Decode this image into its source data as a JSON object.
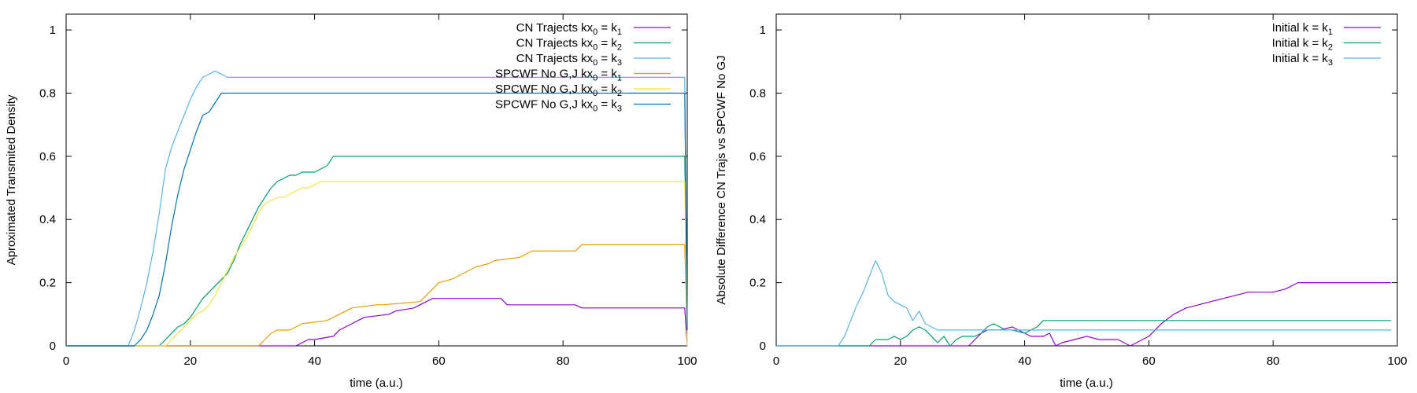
{
  "colors": {
    "purple": "#9400d3",
    "green": "#009e73",
    "cyan": "#56b4e9",
    "orange": "#e69f00",
    "yellow": "#f0e442",
    "blue": "#0072b2"
  },
  "chart_data": [
    {
      "type": "line",
      "xlabel": "time (a.u.)",
      "ylabel": "Aproximated Transmited Density",
      "xlim": [
        0,
        100
      ],
      "ylim": [
        0,
        1.05
      ],
      "xticks": [
        "0",
        "20",
        "40",
        "60",
        "80",
        "100"
      ],
      "yticks": [
        "0",
        "0.2",
        "0.4",
        "0.6",
        "0.8",
        "1"
      ],
      "grid": false,
      "legend_position": "top-right",
      "series": [
        {
          "name": "CN Trajects kx0 = k1",
          "legend": [
            "CN Trajects kx",
            "0",
            " = k",
            "1"
          ],
          "color": "#9400d3",
          "x": [
            0,
            37,
            38,
            39,
            40,
            43,
            44,
            46,
            47,
            48,
            52,
            53,
            56,
            57,
            58,
            59,
            60,
            70,
            71,
            82,
            83,
            99,
            99.6,
            100
          ],
          "y": [
            0,
            0,
            0.01,
            0.02,
            0.02,
            0.03,
            0.05,
            0.07,
            0.08,
            0.09,
            0.1,
            0.11,
            0.12,
            0.13,
            0.14,
            0.15,
            0.15,
            0.15,
            0.13,
            0.13,
            0.12,
            0.12,
            0.12,
            0.0
          ]
        },
        {
          "name": "CN Trajects kx0 = k2",
          "legend": [
            "CN Trajects kx",
            "0",
            " = k",
            "2"
          ],
          "color": "#009e73",
          "x": [
            0,
            15,
            16,
            17,
            18,
            19,
            20,
            21,
            22,
            23,
            24,
            25,
            26,
            27,
            28,
            29,
            30,
            31,
            32,
            33,
            34,
            35,
            36,
            37,
            38,
            39,
            40,
            42,
            43,
            99,
            99.6,
            100
          ],
          "y": [
            0,
            0,
            0.02,
            0.04,
            0.06,
            0.07,
            0.09,
            0.12,
            0.15,
            0.17,
            0.19,
            0.21,
            0.23,
            0.27,
            0.32,
            0.36,
            0.4,
            0.44,
            0.47,
            0.5,
            0.52,
            0.53,
            0.54,
            0.54,
            0.55,
            0.55,
            0.55,
            0.57,
            0.6,
            0.6,
            0.6,
            0.05
          ]
        },
        {
          "name": "CN Trajects kx0 = k3",
          "legend": [
            "CN Trajects kx",
            "0",
            " = k",
            "3"
          ],
          "color": "#56b4e9",
          "x": [
            0,
            10,
            11,
            12,
            13,
            14,
            15,
            16,
            17,
            18,
            19,
            20,
            21,
            22,
            23,
            24,
            25,
            26,
            27,
            99,
            99.6,
            100
          ],
          "y": [
            0,
            0,
            0.05,
            0.12,
            0.2,
            0.3,
            0.42,
            0.56,
            0.63,
            0.68,
            0.73,
            0.78,
            0.82,
            0.85,
            0.86,
            0.87,
            0.86,
            0.85,
            0.85,
            0.85,
            0.85,
            0.05
          ]
        },
        {
          "name": "SPCWF No G,J kx0 = k1",
          "legend": [
            "SPCWF No G,J kx",
            "0",
            " = k",
            "1"
          ],
          "color": "#e69f00",
          "x": [
            0,
            31,
            32,
            33,
            34,
            36,
            37,
            38,
            42,
            43,
            45,
            46,
            50,
            51,
            57,
            58,
            59,
            60,
            62,
            63,
            65,
            66,
            68,
            69,
            73,
            74,
            75,
            76,
            82,
            83,
            99,
            99.6,
            100
          ],
          "y": [
            0,
            0,
            0.02,
            0.04,
            0.05,
            0.05,
            0.06,
            0.07,
            0.08,
            0.09,
            0.11,
            0.12,
            0.13,
            0.13,
            0.14,
            0.16,
            0.18,
            0.2,
            0.21,
            0.22,
            0.24,
            0.25,
            0.26,
            0.27,
            0.28,
            0.29,
            0.3,
            0.3,
            0.3,
            0.32,
            0.32,
            0.32,
            0.02
          ]
        },
        {
          "name": "SPCWF No G,J kx0 = k2",
          "legend": [
            "SPCWF No G,J kx",
            "0",
            " = k",
            "2"
          ],
          "color": "#f0e442",
          "x": [
            0,
            16,
            17,
            18,
            19,
            20,
            21,
            22,
            23,
            24,
            25,
            26,
            27,
            28,
            29,
            30,
            31,
            32,
            33,
            34,
            35,
            36,
            37,
            38,
            39,
            40,
            41,
            42,
            99,
            99.6,
            100
          ],
          "y": [
            0,
            0,
            0.02,
            0.04,
            0.06,
            0.08,
            0.1,
            0.11,
            0.13,
            0.16,
            0.2,
            0.24,
            0.28,
            0.31,
            0.34,
            0.38,
            0.42,
            0.45,
            0.46,
            0.47,
            0.47,
            0.48,
            0.49,
            0.5,
            0.5,
            0.51,
            0.52,
            0.52,
            0.52,
            0.52,
            0.0
          ]
        },
        {
          "name": "SPCWF No G,J kx0 = k3",
          "legend": [
            "SPCWF No G,J kx",
            "0",
            " = k",
            "3"
          ],
          "color": "#0072b2",
          "x": [
            0,
            11,
            12,
            13,
            14,
            15,
            16,
            17,
            18,
            19,
            20,
            21,
            22,
            23,
            24,
            25,
            26,
            99,
            99.6,
            100
          ],
          "y": [
            0,
            0,
            0.02,
            0.05,
            0.1,
            0.16,
            0.26,
            0.38,
            0.48,
            0.56,
            0.62,
            0.68,
            0.73,
            0.74,
            0.77,
            0.8,
            0.8,
            0.8,
            0.8,
            0.05
          ]
        }
      ]
    },
    {
      "type": "line",
      "xlabel": "time (a.u.)",
      "ylabel": "Absolute Difference CN Trajs vs SPCWF No GJ",
      "xlim": [
        0,
        100
      ],
      "ylim": [
        0,
        1.05
      ],
      "xticks": [
        "0",
        "20",
        "40",
        "60",
        "80",
        "100"
      ],
      "yticks": [
        "0",
        "0.2",
        "0.4",
        "0.6",
        "0.8",
        "1"
      ],
      "grid": false,
      "legend_position": "top-right",
      "series": [
        {
          "name": "Initial k = k1",
          "legend": [
            "Initial k = k",
            "1"
          ],
          "color": "#9400d3",
          "x": [
            0,
            31,
            32,
            33,
            34,
            36,
            38,
            39,
            40,
            41,
            43,
            44,
            45,
            46,
            48,
            50,
            52,
            55,
            57,
            58,
            60,
            61,
            62,
            64,
            66,
            68,
            70,
            72,
            74,
            76,
            80,
            82,
            84,
            99
          ],
          "y": [
            0,
            0,
            0.02,
            0.04,
            0.05,
            0.05,
            0.06,
            0.05,
            0.04,
            0.03,
            0.03,
            0.04,
            0.0,
            0.01,
            0.02,
            0.03,
            0.02,
            0.02,
            0.0,
            0.01,
            0.03,
            0.05,
            0.07,
            0.1,
            0.12,
            0.13,
            0.14,
            0.15,
            0.16,
            0.17,
            0.17,
            0.18,
            0.2,
            0.2
          ]
        },
        {
          "name": "Initial k = k2",
          "legend": [
            "Initial k = k",
            "2"
          ],
          "color": "#009e73",
          "x": [
            0,
            15,
            16,
            18,
            19,
            20,
            21,
            22,
            23,
            24,
            25,
            26,
            27,
            28,
            29,
            30,
            32,
            33,
            34,
            35,
            36,
            37,
            38,
            40,
            41,
            42,
            43,
            99
          ],
          "y": [
            0,
            0,
            0.02,
            0.02,
            0.03,
            0.02,
            0.03,
            0.05,
            0.06,
            0.05,
            0.03,
            0.01,
            0.03,
            0.0,
            0.02,
            0.03,
            0.03,
            0.04,
            0.06,
            0.07,
            0.06,
            0.05,
            0.05,
            0.04,
            0.05,
            0.06,
            0.08,
            0.08
          ]
        },
        {
          "name": "Initial k = k3",
          "legend": [
            "Initial k = k",
            "3"
          ],
          "color": "#56b4e9",
          "x": [
            0,
            10,
            11,
            12,
            13,
            14,
            15,
            16,
            17,
            18,
            19,
            20,
            21,
            22,
            23,
            24,
            25,
            26,
            27,
            28,
            99
          ],
          "y": [
            0,
            0,
            0.03,
            0.08,
            0.13,
            0.17,
            0.22,
            0.27,
            0.23,
            0.16,
            0.14,
            0.13,
            0.12,
            0.08,
            0.11,
            0.07,
            0.06,
            0.05,
            0.05,
            0.05,
            0.05
          ]
        }
      ]
    }
  ]
}
